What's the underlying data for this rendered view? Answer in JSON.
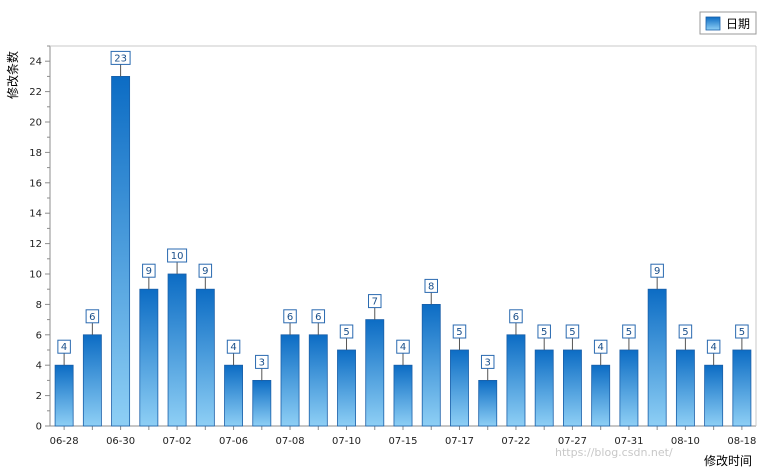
{
  "chart_data": {
    "type": "bar",
    "x_tick_labels": [
      "06-28",
      "06-30",
      "07-02",
      "07-06",
      "07-08",
      "07-10",
      "07-15",
      "07-17",
      "07-22",
      "07-27",
      "07-31",
      "08-10",
      "08-18"
    ],
    "values": [
      4,
      6,
      23,
      9,
      10,
      9,
      4,
      3,
      6,
      6,
      5,
      7,
      4,
      8,
      5,
      3,
      6,
      5,
      5,
      4,
      5,
      9,
      5,
      4,
      5
    ],
    "series": [
      {
        "name": "日期"
      }
    ],
    "xlabel": "修改时间",
    "ylabel": "修改条数",
    "ylim": [
      0,
      25
    ],
    "y_ticks": [
      0,
      2,
      4,
      6,
      8,
      10,
      12,
      14,
      16,
      18,
      20,
      22,
      24
    ],
    "grid": false,
    "legend_position": "top-right",
    "colors": {
      "bar_top": "#0c6cc4",
      "bar_bottom": "#8ecff5",
      "bar_stroke": "#1a5fa8",
      "axis": "#8c8c8c"
    }
  },
  "watermark": "https://blog.csdn.net/"
}
